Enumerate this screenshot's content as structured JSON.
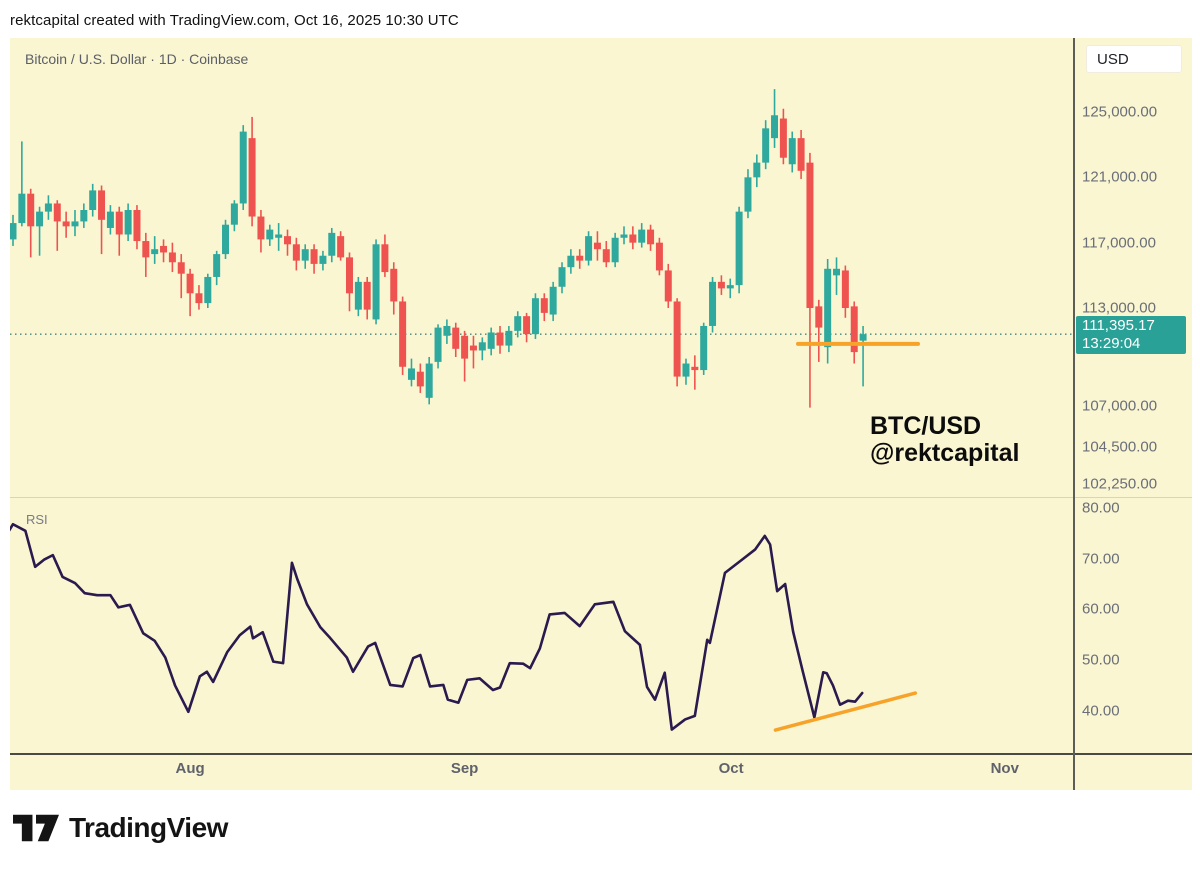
{
  "attribution": "rektcapital created with TradingView.com, Oct 16, 2025 10:30 UTC",
  "chart": {
    "symbol_title": "Bitcoin / U.S. Dollar · 1D · Coinbase",
    "currency_button": "USD",
    "price_badge": {
      "price": "111,395.17",
      "countdown": "13:29:04"
    },
    "annotation": {
      "line1": "BTC/USD",
      "line2": "@rektcapital"
    },
    "rsi_label": "RSI"
  },
  "colors": {
    "background": "#faf6d2",
    "up": "#2fa99e",
    "down": "#ef534f",
    "rsi_line": "#2a1a4e",
    "trendline_orange": "#f7a228",
    "badge_bg": "#2aa197",
    "price_dotted": "#46837a",
    "axis_text": "#6a6e78"
  },
  "chart_data": [
    {
      "type": "candlestick",
      "title": "Bitcoin / U.S. Dollar · 1D · Coinbase",
      "ylabel": "USD",
      "last_price": 111395.17,
      "y_ticks": [
        {
          "value": 125000,
          "label": "125,000.00"
        },
        {
          "value": 121000,
          "label": "121,000.00"
        },
        {
          "value": 117000,
          "label": "117,000.00"
        },
        {
          "value": 113000,
          "label": "113,000.00"
        },
        {
          "value": 107000,
          "label": "107,000.00"
        },
        {
          "value": 104500,
          "label": "104,500.00"
        },
        {
          "value": 102250,
          "label": "102,250.00"
        }
      ],
      "x_ticks": [
        {
          "label": "Aug",
          "day": 20
        },
        {
          "label": "Sep",
          "day": 51
        },
        {
          "label": "Oct",
          "day": 81.1
        },
        {
          "label": "Nov",
          "day": 112
        }
      ],
      "trendline": {
        "start_day": 88.65,
        "end_day": 102.2,
        "price": 110800
      },
      "candles": [
        [
          117200,
          118700,
          116800,
          118200
        ],
        [
          118200,
          123200,
          118000,
          120000
        ],
        [
          120000,
          120300,
          116100,
          118000
        ],
        [
          118000,
          119200,
          116200,
          118900
        ],
        [
          118900,
          119900,
          118400,
          119400
        ],
        [
          119400,
          119600,
          116500,
          118300
        ],
        [
          118300,
          118900,
          117300,
          118000
        ],
        [
          118000,
          119000,
          117400,
          118300
        ],
        [
          118300,
          119400,
          117900,
          119000
        ],
        [
          119000,
          120600,
          118600,
          120200
        ],
        [
          120200,
          120500,
          116300,
          118400
        ],
        [
          117900,
          119300,
          117500,
          118900
        ],
        [
          118900,
          119200,
          116200,
          117500
        ],
        [
          117500,
          119400,
          117100,
          119000
        ],
        [
          119000,
          119300,
          116600,
          117100
        ],
        [
          117100,
          117600,
          114900,
          116100
        ],
        [
          116300,
          117400,
          115700,
          116600
        ],
        [
          116800,
          117200,
          115800,
          116400
        ],
        [
          116400,
          117000,
          115200,
          115800
        ],
        [
          115800,
          116300,
          113600,
          115100
        ],
        [
          115100,
          115400,
          112500,
          113900
        ],
        [
          113900,
          114400,
          112900,
          113300
        ],
        [
          113300,
          115100,
          113000,
          114900
        ],
        [
          114900,
          116500,
          114400,
          116300
        ],
        [
          116300,
          118400,
          116000,
          118100
        ],
        [
          118100,
          119600,
          117700,
          119400
        ],
        [
          119400,
          124200,
          119000,
          123800
        ],
        [
          123400,
          124700,
          118000,
          118600
        ],
        [
          118600,
          119000,
          116400,
          117200
        ],
        [
          117200,
          118100,
          116800,
          117800
        ],
        [
          117300,
          118200,
          116500,
          117500
        ],
        [
          117400,
          117800,
          116200,
          116900
        ],
        [
          116900,
          117300,
          115300,
          115900
        ],
        [
          115900,
          116900,
          115400,
          116600
        ],
        [
          116600,
          116900,
          115100,
          115700
        ],
        [
          115700,
          116500,
          115300,
          116200
        ],
        [
          116200,
          117900,
          115800,
          117600
        ],
        [
          117400,
          117700,
          115900,
          116100
        ],
        [
          116100,
          116400,
          112800,
          113900
        ],
        [
          112900,
          114900,
          112500,
          114600
        ],
        [
          114600,
          114900,
          112300,
          112900
        ],
        [
          112300,
          117200,
          112000,
          116900
        ],
        [
          116900,
          117500,
          114900,
          115200
        ],
        [
          115400,
          115800,
          112600,
          113400
        ],
        [
          113400,
          113700,
          108900,
          109400
        ],
        [
          108600,
          109900,
          108200,
          109300
        ],
        [
          109100,
          109600,
          107800,
          108200
        ],
        [
          107500,
          110000,
          107100,
          109600
        ],
        [
          109700,
          112000,
          109300,
          111800
        ],
        [
          111300,
          112300,
          110800,
          111900
        ],
        [
          111800,
          112100,
          110000,
          110500
        ],
        [
          111300,
          111600,
          108500,
          109900
        ],
        [
          110700,
          111300,
          109300,
          110400
        ],
        [
          110400,
          111200,
          109800,
          110900
        ],
        [
          110500,
          111800,
          110100,
          111500
        ],
        [
          111500,
          111900,
          110200,
          110700
        ],
        [
          110700,
          111900,
          110300,
          111600
        ],
        [
          111600,
          112800,
          111200,
          112500
        ],
        [
          112500,
          112700,
          110900,
          111400
        ],
        [
          111400,
          113900,
          111100,
          113600
        ],
        [
          113600,
          113900,
          112200,
          112700
        ],
        [
          112600,
          114600,
          112200,
          114300
        ],
        [
          114300,
          115800,
          113900,
          115500
        ],
        [
          115500,
          116600,
          115100,
          116200
        ],
        [
          116200,
          116600,
          115400,
          115900
        ],
        [
          115900,
          117700,
          115600,
          117400
        ],
        [
          117000,
          117700,
          115900,
          116600
        ],
        [
          116600,
          117100,
          115500,
          115800
        ],
        [
          115800,
          117600,
          115500,
          117300
        ],
        [
          117300,
          118000,
          116900,
          117500
        ],
        [
          117500,
          118000,
          116600,
          117000
        ],
        [
          117000,
          118200,
          116700,
          117800
        ],
        [
          117800,
          118100,
          116500,
          116900
        ],
        [
          117000,
          117300,
          115000,
          115300
        ],
        [
          115300,
          115700,
          113000,
          113400
        ],
        [
          113400,
          113600,
          108200,
          108800
        ],
        [
          108800,
          109900,
          108300,
          109600
        ],
        [
          109400,
          110100,
          108000,
          109200
        ],
        [
          109200,
          112100,
          108900,
          111900
        ],
        [
          111900,
          114900,
          111500,
          114600
        ],
        [
          114600,
          115000,
          113800,
          114200
        ],
        [
          114200,
          114800,
          113600,
          114400
        ],
        [
          114400,
          119200,
          113900,
          118900
        ],
        [
          118900,
          121500,
          118500,
          121000
        ],
        [
          121000,
          122400,
          120400,
          121900
        ],
        [
          121900,
          124500,
          121500,
          124000
        ],
        [
          123400,
          126400,
          122800,
          124800
        ],
        [
          124600,
          125200,
          121800,
          122200
        ],
        [
          121800,
          123800,
          121300,
          123400
        ],
        [
          123400,
          123900,
          120900,
          121400
        ],
        [
          121900,
          122500,
          106900,
          113000
        ],
        [
          113100,
          113500,
          109700,
          111800
        ],
        [
          110600,
          116000,
          109600,
          115400
        ],
        [
          115000,
          116100,
          113800,
          115400
        ],
        [
          115300,
          115600,
          112400,
          113000
        ],
        [
          113100,
          113400,
          109600,
          110300
        ],
        [
          111000,
          111900,
          108200,
          111400
        ]
      ]
    },
    {
      "type": "line",
      "name": "RSI",
      "y_ticks": [
        {
          "value": 80,
          "label": "80.00"
        },
        {
          "value": 70,
          "label": "70.00"
        },
        {
          "value": 60,
          "label": "60.00"
        },
        {
          "value": 50,
          "label": "50.00"
        },
        {
          "value": 40,
          "label": "40.00"
        }
      ],
      "trendline": {
        "start_day": 86.1,
        "start_value": 36.2,
        "end_day": 101.9,
        "end_value": 43.5
      },
      "points": [
        [
          -1.5,
          72.5
        ],
        [
          0,
          76.8
        ],
        [
          1.4,
          75.5
        ],
        [
          2.5,
          68.4
        ],
        [
          3.5,
          69.8
        ],
        [
          4.5,
          70.7
        ],
        [
          5.6,
          66.4
        ],
        [
          7,
          65.2
        ],
        [
          8.1,
          63.2
        ],
        [
          9.5,
          62.8
        ],
        [
          11,
          62.8
        ],
        [
          11.9,
          60.4
        ],
        [
          13.2,
          60.9
        ],
        [
          14.7,
          55.3
        ],
        [
          16,
          53.8
        ],
        [
          17.2,
          50.5
        ],
        [
          18.3,
          45.0
        ],
        [
          19.8,
          39.8
        ],
        [
          21.1,
          46.8
        ],
        [
          21.9,
          47.7
        ],
        [
          22.6,
          45.7
        ],
        [
          24.2,
          51.6
        ],
        [
          25.6,
          54.9
        ],
        [
          26.8,
          56.6
        ],
        [
          27.1,
          54.3
        ],
        [
          28.2,
          55.5
        ],
        [
          29.4,
          49.7
        ],
        [
          30.5,
          49.4
        ],
        [
          31.5,
          69.2
        ],
        [
          32.1,
          66.0
        ],
        [
          33.2,
          61.0
        ],
        [
          34.7,
          56.5
        ],
        [
          35.8,
          54.4
        ],
        [
          37.7,
          50.5
        ],
        [
          38.4,
          47.7
        ],
        [
          40.1,
          52.7
        ],
        [
          40.9,
          53.4
        ],
        [
          42.6,
          45.1
        ],
        [
          44,
          44.8
        ],
        [
          45.2,
          50.4
        ],
        [
          46,
          51.0
        ],
        [
          47.1,
          44.8
        ],
        [
          48.6,
          45.1
        ],
        [
          49.1,
          42.2
        ],
        [
          50.3,
          41.6
        ],
        [
          51.3,
          46.1
        ],
        [
          52.7,
          46.4
        ],
        [
          54.2,
          44.1
        ],
        [
          55,
          44.6
        ],
        [
          56.1,
          49.4
        ],
        [
          57.6,
          49.3
        ],
        [
          58.4,
          48.4
        ],
        [
          59.5,
          52.3
        ],
        [
          60.6,
          59.0
        ],
        [
          62.3,
          59.3
        ],
        [
          64,
          56.7
        ],
        [
          65.7,
          61.0
        ],
        [
          67.8,
          61.5
        ],
        [
          69.1,
          55.7
        ],
        [
          70.8,
          53.0
        ],
        [
          71.6,
          44.7
        ],
        [
          72.5,
          42.2
        ],
        [
          73.6,
          47.5
        ],
        [
          74.4,
          36.3
        ],
        [
          75.9,
          38.3
        ],
        [
          77,
          39.0
        ],
        [
          78.4,
          54.0
        ],
        [
          78.7,
          53.4
        ],
        [
          80.4,
          67.2
        ],
        [
          82.1,
          69.5
        ],
        [
          83.8,
          71.8
        ],
        [
          84.9,
          74.5
        ],
        [
          85.5,
          72.8
        ],
        [
          86.3,
          63.6
        ],
        [
          87.2,
          65.0
        ],
        [
          88.1,
          55.6
        ],
        [
          89.2,
          47.7
        ],
        [
          90.5,
          38.7
        ],
        [
          91.5,
          47.6
        ],
        [
          91.9,
          47.4
        ],
        [
          92.6,
          45.0
        ],
        [
          93.4,
          41.2
        ],
        [
          94.3,
          42.0
        ],
        [
          95.1,
          41.8
        ],
        [
          95.9,
          43.5
        ]
      ]
    }
  ],
  "footer": {
    "logo_text": "TradingView"
  }
}
